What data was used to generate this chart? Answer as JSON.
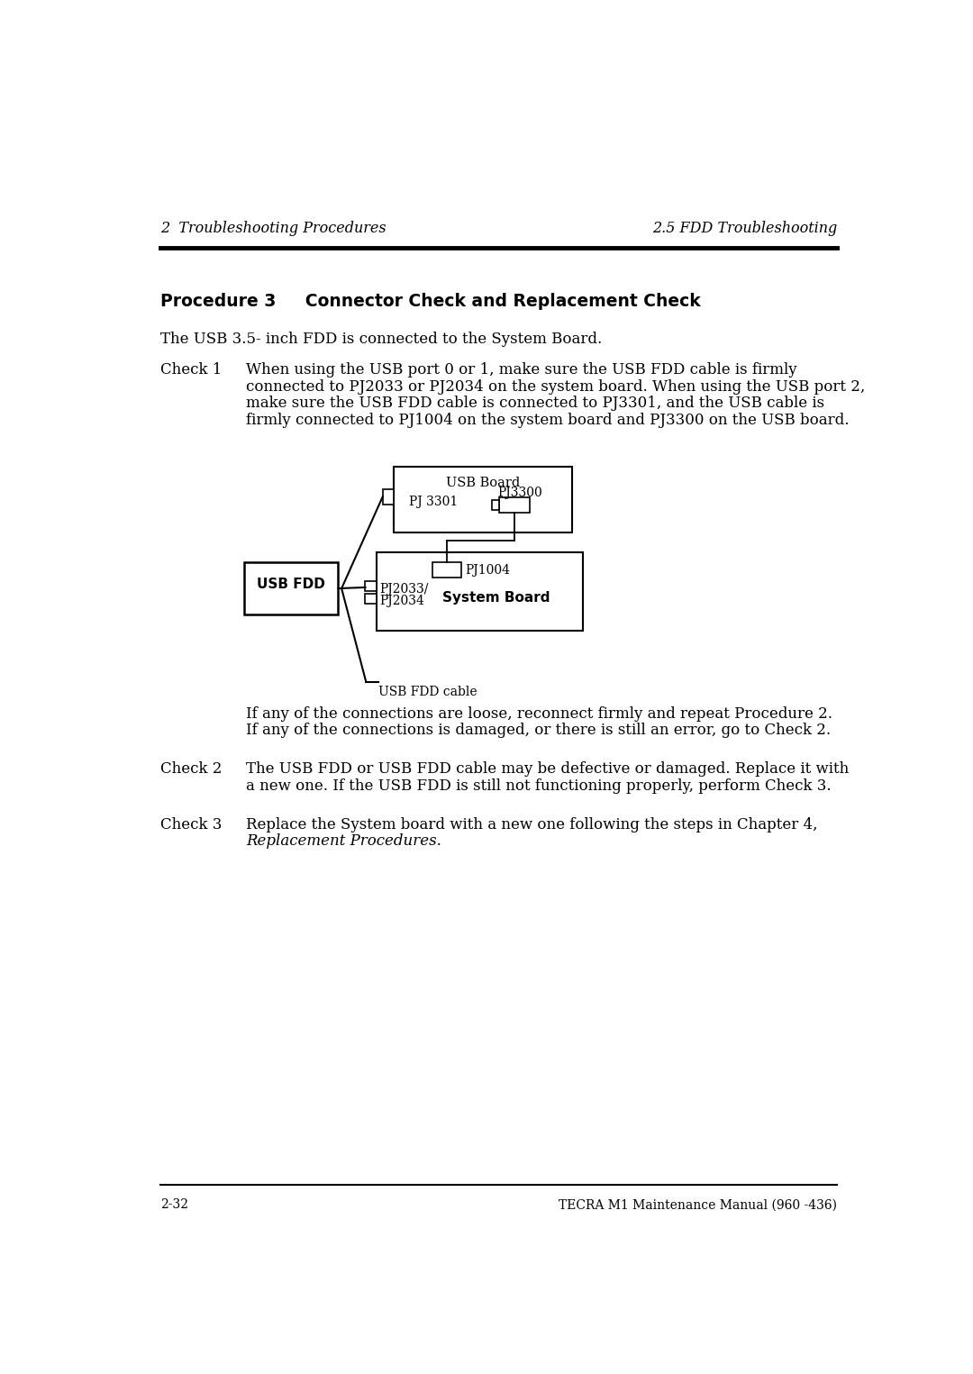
{
  "page_bg": "#ffffff",
  "header_left": "2  Troubleshooting Procedures",
  "header_right": "2.5 FDD Troubleshooting",
  "footer_left": "2-32",
  "footer_right": "TECRA M1 Maintenance Manual (960 -436)",
  "procedure_title": "Procedure 3     Connector Check and Replacement Check",
  "intro_text": "The USB 3.5- inch FDD is connected to the System Board.",
  "check1_label": "Check 1",
  "check1_lines": [
    "When using the USB port 0 or 1, make sure the USB FDD cable is firmly",
    "connected to PJ2033 or PJ2034 on the system board. When using the USB port 2,",
    "make sure the USB FDD cable is connected to PJ3301, and the USB cable is",
    "firmly connected to PJ1004 on the system board and PJ3300 on the USB board."
  ],
  "check1_note1": "If any of the connections are loose, reconnect firmly and repeat Procedure 2.",
  "check1_note2": "If any of the connections is damaged, or there is still an error, go to Check 2.",
  "check2_label": "Check 2",
  "check2_lines": [
    "The USB FDD or USB FDD cable may be defective or damaged. Replace it with",
    "a new one. If the USB FDD is still not functioning properly, perform Check 3."
  ],
  "check3_label": "Check 3",
  "check3_line1": "Replace the System board with a new one following the steps in Chapter 4,",
  "check3_line2": "Replacement Procedures.",
  "diagram_usb_board_label": "USB Board",
  "diagram_pj3301": "PJ 3301",
  "diagram_pj3300": "PJ3300",
  "diagram_pj2033": "PJ2033/",
  "diagram_pj2034": "PJ2034",
  "diagram_pj1004": "PJ1004",
  "diagram_system_board": "System Board",
  "diagram_usb_fdd": "USB FDD",
  "diagram_cable_label": "USB FDD cable"
}
